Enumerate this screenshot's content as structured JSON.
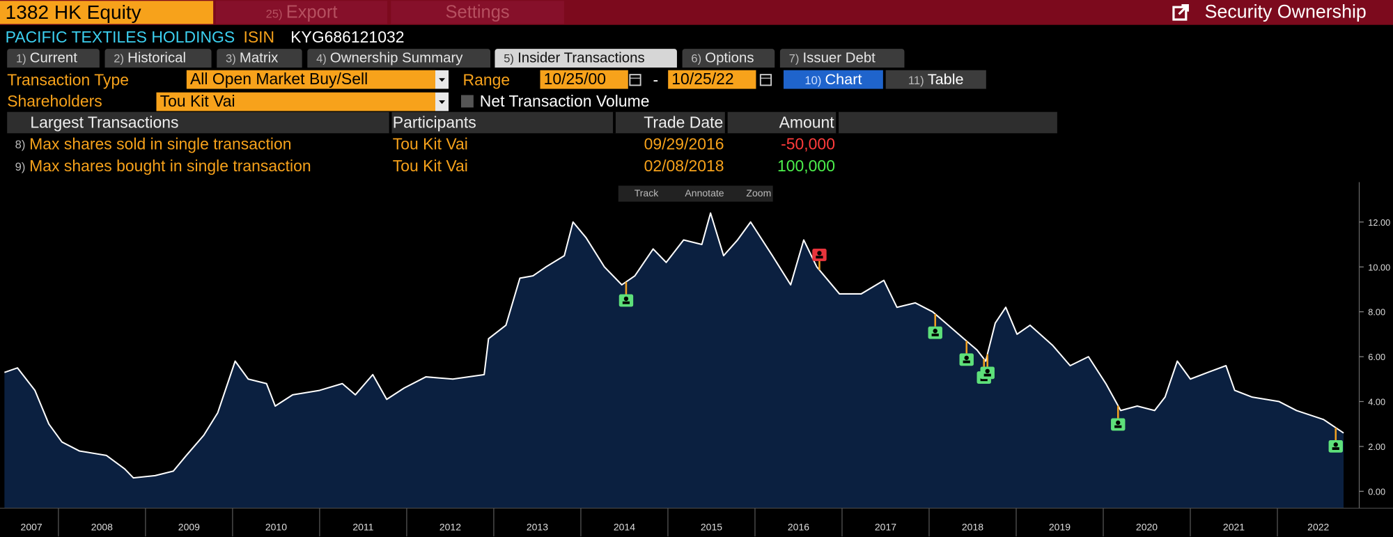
{
  "header": {
    "ticker": "1382 HK Equity",
    "menu": [
      {
        "num": "25)",
        "label": "Export"
      },
      {
        "label": "Settings"
      }
    ],
    "title": "Security Ownership"
  },
  "security": {
    "name": "PACIFIC TEXTILES HOLDINGS",
    "isin_label": "ISIN",
    "isin": "KYG686121032"
  },
  "tabs": [
    {
      "num": "1)",
      "label": "Current"
    },
    {
      "num": "2)",
      "label": "Historical"
    },
    {
      "num": "3)",
      "label": "Matrix"
    },
    {
      "num": "4)",
      "label": "Ownership Summary"
    },
    {
      "num": "5)",
      "label": "Insider Transactions"
    },
    {
      "num": "6)",
      "label": "Options"
    },
    {
      "num": "7)",
      "label": "Issuer Debt"
    }
  ],
  "active_tab": 4,
  "controls": {
    "transaction_type_label": "Transaction Type",
    "transaction_type": "All Open Market Buy/Sell",
    "range_label": "Range",
    "range_from": "10/25/00",
    "range_sep": "-",
    "range_to": "10/25/22",
    "shareholders_label": "Shareholders",
    "shareholders": "Tou Kit Vai",
    "net_volume_label": "Net Transaction Volume",
    "views": [
      {
        "num": "10)",
        "label": "Chart"
      },
      {
        "num": "11)",
        "label": "Table"
      }
    ]
  },
  "table": {
    "columns": [
      "Largest Transactions",
      "Participants",
      "Trade Date",
      "Amount"
    ],
    "rows": [
      {
        "num": "8)",
        "label": "Max shares sold in single transaction",
        "participant": "Tou Kit Vai",
        "date": "09/29/2016",
        "amount": "-50,000"
      },
      {
        "num": "9)",
        "label": "Max shares bought in single transaction",
        "participant": "Tou Kit Vai",
        "date": "02/08/2018",
        "amount": "100,000"
      }
    ]
  },
  "toolbar": [
    "Track",
    "Annotate",
    "Zoom"
  ],
  "chart_data": {
    "type": "area",
    "x": [
      2007.38,
      2007.53,
      2007.73,
      2007.89,
      2008.04,
      2008.24,
      2008.55,
      2008.76,
      2008.86,
      2009.11,
      2009.32,
      2009.47,
      2009.67,
      2009.83,
      2009.96,
      2010.03,
      2010.18,
      2010.39,
      2010.49,
      2010.69,
      2011.0,
      2011.26,
      2011.41,
      2011.61,
      2011.77,
      2011.97,
      2012.22,
      2012.53,
      2012.89,
      2012.94,
      2013.14,
      2013.3,
      2013.45,
      2013.6,
      2013.81,
      2013.91,
      2014.06,
      2014.27,
      2014.47,
      2014.62,
      2014.83,
      2014.98,
      2015.18,
      2015.39,
      2015.49,
      2015.64,
      2015.8,
      2015.95,
      2016.2,
      2016.41,
      2016.56,
      2016.71,
      2016.97,
      2017.22,
      2017.48,
      2017.63,
      2017.84,
      2018.04,
      2018.19,
      2018.4,
      2018.55,
      2018.65,
      2018.76,
      2018.88,
      2019.01,
      2019.16,
      2019.42,
      2019.62,
      2019.83,
      2020.03,
      2020.2,
      2020.39,
      2020.59,
      2020.71,
      2020.85,
      2021.0,
      2021.2,
      2021.41,
      2021.51,
      2021.71,
      2022.02,
      2022.22,
      2022.53,
      2022.76
    ],
    "values": [
      5.3,
      5.5,
      4.5,
      3.0,
      2.2,
      1.8,
      1.6,
      1.0,
      0.6,
      0.7,
      0.9,
      1.6,
      2.5,
      3.5,
      5.0,
      5.8,
      5.0,
      4.8,
      3.8,
      4.3,
      4.5,
      4.8,
      4.3,
      5.2,
      4.1,
      4.6,
      5.1,
      5.0,
      5.2,
      6.8,
      7.4,
      9.5,
      9.6,
      10.0,
      10.5,
      12.0,
      11.3,
      10.0,
      9.2,
      9.6,
      10.8,
      10.2,
      11.2,
      11.0,
      12.4,
      10.5,
      11.2,
      12.0,
      10.5,
      9.2,
      11.2,
      10.0,
      8.8,
      8.8,
      9.4,
      8.2,
      8.4,
      8.0,
      7.5,
      6.8,
      6.3,
      5.8,
      7.5,
      8.2,
      7.0,
      7.4,
      6.5,
      5.6,
      6.0,
      4.8,
      3.6,
      3.8,
      3.6,
      4.2,
      5.8,
      5.0,
      5.3,
      5.6,
      4.5,
      4.2,
      4.0,
      3.6,
      3.2,
      2.6
    ],
    "line_color": "#ffffff",
    "area_color": "#0b2040",
    "buy_x": [
      2014.52,
      2018.07,
      2018.43,
      2018.63,
      2018.67,
      2020.17,
      2022.67
    ],
    "buy_color": "#5ee07a",
    "sell_x": [
      2016.74
    ],
    "sell_color": "#e8343c",
    "xlim": [
      2007.38,
      2022.94
    ],
    "xticks": [
      2007,
      2008,
      2009,
      2010,
      2011,
      2012,
      2013,
      2014,
      2015,
      2016,
      2017,
      2018,
      2019,
      2020,
      2021,
      2022
    ],
    "ylim": [
      -0.75,
      13.58
    ],
    "yticks": [
      {
        "value": 0,
        "label": "0.00"
      },
      {
        "value": 2,
        "label": "2.00"
      },
      {
        "value": 4,
        "label": "4.00"
      },
      {
        "value": 6,
        "label": "6.00"
      },
      {
        "value": 8,
        "label": "8.00"
      },
      {
        "value": 10,
        "label": "10.00"
      },
      {
        "value": 12,
        "label": "12.00"
      }
    ]
  }
}
